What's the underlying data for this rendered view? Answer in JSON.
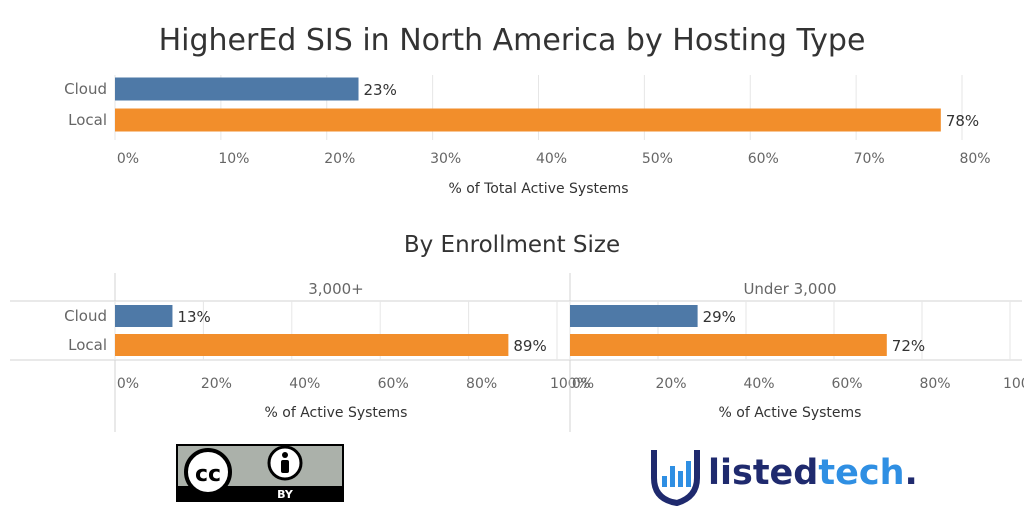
{
  "colors": {
    "cloud": "#4e79a7",
    "local": "#f28e2b",
    "wordmark_dark": "#1f2a6e",
    "wordmark_accent": "#2f8fe3"
  },
  "header": {
    "title": "HigherEd SIS in North America by Hosting Type",
    "subtitle": "By Enrollment Size"
  },
  "chart_data": [
    {
      "type": "bar",
      "orientation": "horizontal",
      "categories": [
        "Cloud",
        "Local"
      ],
      "values": [
        23,
        78
      ],
      "value_suffix": "%",
      "xlabel": "% of Total Active Systems",
      "xlim": [
        0,
        80
      ],
      "ticks": [
        0,
        10,
        20,
        30,
        40,
        50,
        60,
        70,
        80
      ],
      "grid": true
    },
    {
      "type": "bar",
      "orientation": "horizontal",
      "panel": "3,000+",
      "categories": [
        "Cloud",
        "Local"
      ],
      "values": [
        13,
        89
      ],
      "value_suffix": "%",
      "xlabel": "% of Active Systems",
      "xlim": [
        0,
        100
      ],
      "ticks": [
        0,
        20,
        40,
        60,
        80,
        100
      ],
      "grid": true
    },
    {
      "type": "bar",
      "orientation": "horizontal",
      "panel": "Under 3,000",
      "categories": [
        "Cloud",
        "Local"
      ],
      "values": [
        29,
        72
      ],
      "value_suffix": "%",
      "xlabel": "% of Active Systems",
      "xlim": [
        0,
        100
      ],
      "ticks": [
        0,
        20,
        40,
        60,
        80,
        100
      ],
      "grid": true
    }
  ],
  "logos": {
    "cc_license": {
      "icons": [
        "cc-icon",
        "person-icon"
      ],
      "label": "BY"
    },
    "brand": {
      "prefix": "listed",
      "suffix": "tech",
      "dot": "."
    }
  }
}
